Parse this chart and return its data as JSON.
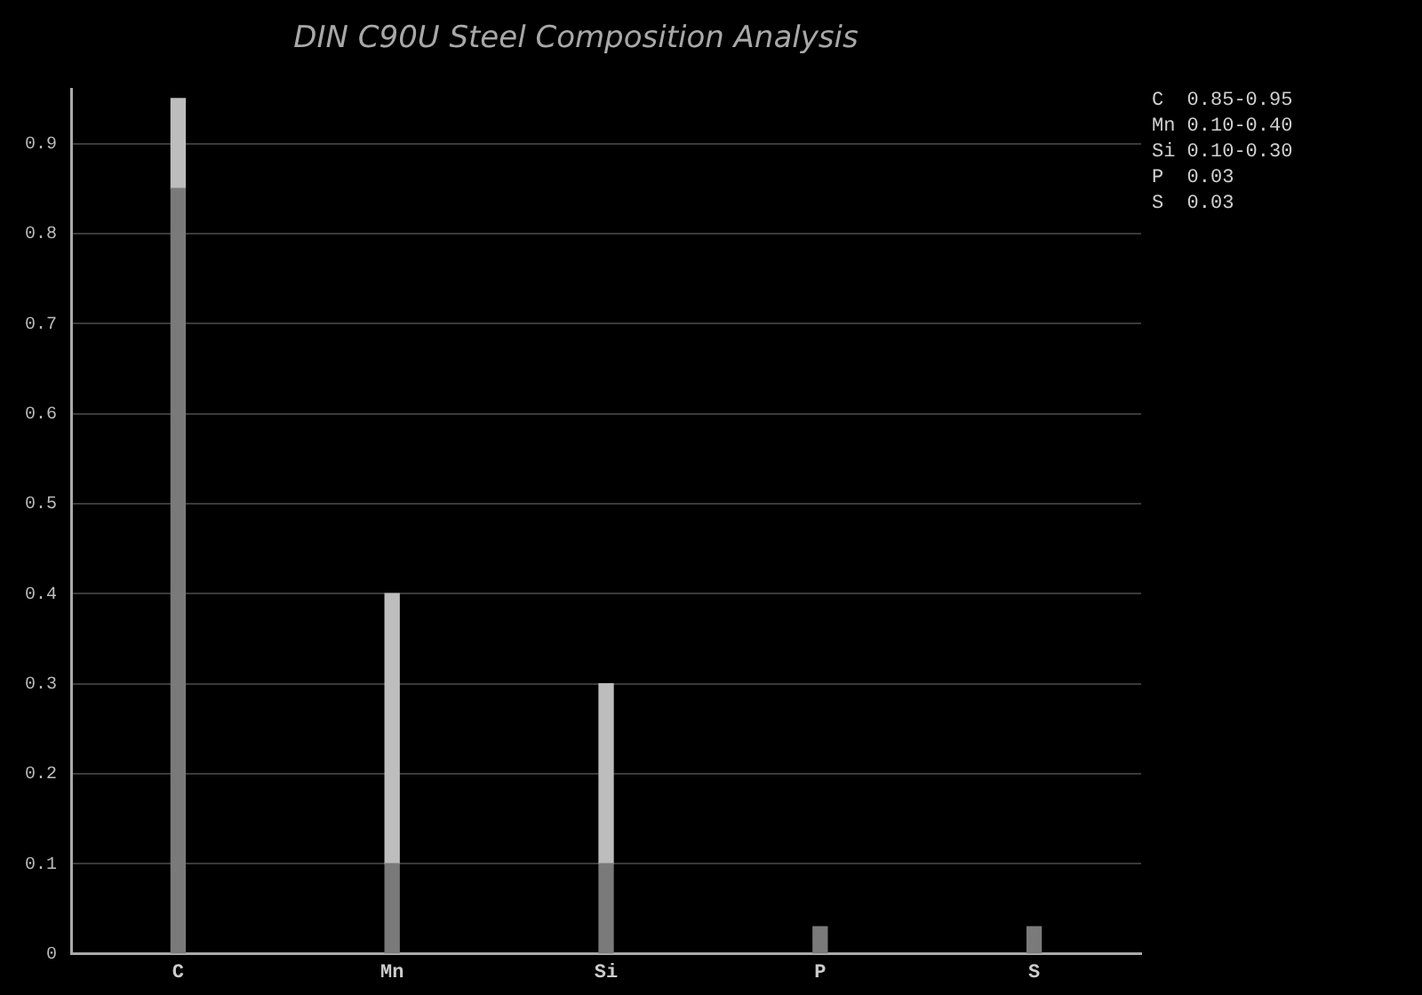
{
  "chart_data": {
    "type": "bar",
    "title": "DIN C90U Steel Composition Analysis",
    "categories": [
      "C",
      "Mn",
      "Si",
      "P",
      "S"
    ],
    "stacked": true,
    "series": [
      {
        "color": "#7a7a7a",
        "values": [
          0.85,
          0.1,
          0.1,
          0.03,
          0.03
        ]
      },
      {
        "color": "#bdbdbd",
        "values": [
          0.1,
          0.3,
          0.2,
          null,
          null
        ]
      }
    ],
    "ylim": [
      0,
      0.96
    ],
    "yticks": [
      0,
      0.1,
      0.2,
      0.3,
      0.4,
      0.5,
      0.6,
      0.7,
      0.8,
      0.9
    ],
    "grid": "y",
    "legend": false,
    "annotations": [
      "C  0.85-0.95",
      "Mn 0.10-0.40",
      "Si 0.10-0.30",
      "P  0.03",
      "S  0.03"
    ]
  }
}
